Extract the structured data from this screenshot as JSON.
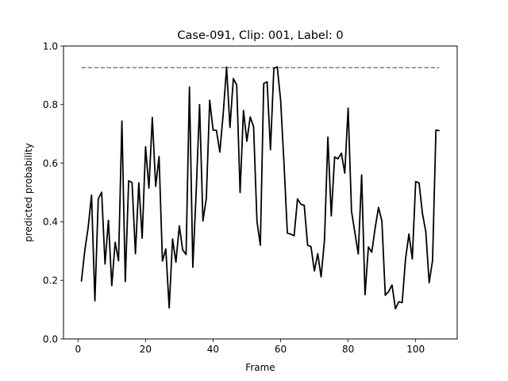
{
  "chart_data": {
    "type": "line",
    "title": "Case-091, Clip: 001, Label: 0",
    "xlabel": "Frame",
    "ylabel": "predicted probability",
    "xlim": [
      -4.3,
      112.3
    ],
    "ylim": [
      0.0,
      1.0
    ],
    "xticks": [
      0,
      20,
      40,
      60,
      80,
      100
    ],
    "yticks": [
      0.0,
      0.2,
      0.4,
      0.6,
      0.8,
      1.0
    ],
    "ytick_labels": [
      "0.0",
      "0.2",
      "0.4",
      "0.6",
      "0.8",
      "1.0"
    ],
    "grid": false,
    "legend": "none",
    "threshold": {
      "value": 0.926,
      "x_start": 1,
      "x_end": 107,
      "style": "dashed",
      "color": "#808080"
    },
    "series": [
      {
        "color": "#000000",
        "x": [
          1,
          2,
          3,
          4,
          5,
          6,
          7,
          8,
          9,
          10,
          11,
          12,
          13,
          14,
          15,
          16,
          17,
          18,
          19,
          20,
          21,
          22,
          23,
          24,
          25,
          26,
          27,
          28,
          29,
          30,
          31,
          32,
          33,
          34,
          35,
          36,
          37,
          38,
          39,
          40,
          41,
          42,
          43,
          44,
          45,
          46,
          47,
          48,
          49,
          50,
          51,
          52,
          53,
          54,
          55,
          56,
          57,
          58,
          59,
          60,
          61,
          62,
          63,
          64,
          65,
          66,
          67,
          68,
          69,
          70,
          71,
          72,
          73,
          74,
          75,
          76,
          77,
          78,
          79,
          80,
          81,
          82,
          83,
          84,
          85,
          86,
          87,
          88,
          89,
          90,
          91,
          92,
          93,
          94,
          95,
          96,
          97,
          98,
          99,
          100,
          101,
          102,
          103,
          104,
          105,
          106,
          107
        ],
        "y": [
          0.197,
          0.301,
          0.38,
          0.491,
          0.13,
          0.478,
          0.501,
          0.256,
          0.405,
          0.182,
          0.33,
          0.267,
          0.744,
          0.196,
          0.54,
          0.534,
          0.291,
          0.533,
          0.344,
          0.656,
          0.515,
          0.756,
          0.521,
          0.623,
          0.266,
          0.307,
          0.106,
          0.341,
          0.262,
          0.386,
          0.304,
          0.288,
          0.86,
          0.245,
          0.504,
          0.8,
          0.403,
          0.48,
          0.815,
          0.713,
          0.712,
          0.638,
          0.769,
          0.928,
          0.722,
          0.889,
          0.867,
          0.5,
          0.78,
          0.675,
          0.758,
          0.724,
          0.401,
          0.32,
          0.872,
          0.878,
          0.646,
          0.924,
          0.929,
          0.816,
          0.6,
          0.361,
          0.358,
          0.352,
          0.478,
          0.46,
          0.456,
          0.32,
          0.315,
          0.232,
          0.291,
          0.212,
          0.339,
          0.689,
          0.42,
          0.621,
          0.615,
          0.634,
          0.566,
          0.788,
          0.436,
          0.363,
          0.29,
          0.56,
          0.151,
          0.314,
          0.296,
          0.379,
          0.449,
          0.402,
          0.149,
          0.162,
          0.184,
          0.103,
          0.127,
          0.124,
          0.273,
          0.358,
          0.273,
          0.537,
          0.533,
          0.429,
          0.366,
          0.192,
          0.268,
          0.713,
          0.711
        ]
      }
    ]
  }
}
